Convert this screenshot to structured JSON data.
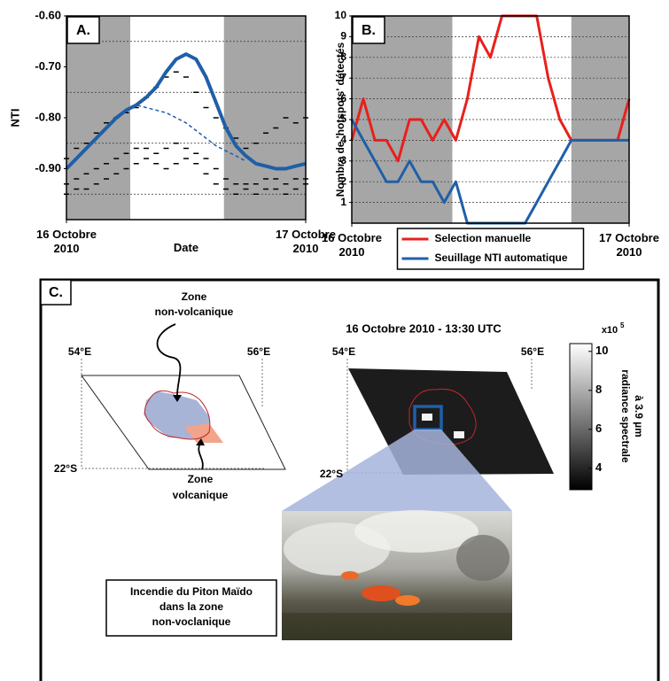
{
  "chart_data": [
    {
      "type": "line",
      "panel_label": "A.",
      "y_label": "NTI",
      "x_label": "Date",
      "x": [
        0,
        1,
        2,
        3,
        4,
        5,
        6,
        7,
        8,
        9,
        10,
        11,
        12,
        13,
        14,
        15,
        16,
        17,
        18,
        19,
        20,
        21,
        22,
        23,
        24
      ],
      "xlim": [
        0,
        24
      ],
      "xticks": [
        {
          "value": 0,
          "label": "16 Octobre 2010"
        },
        {
          "value": 24,
          "label": "17 Octobre 2010"
        }
      ],
      "ylim": [
        -1.0,
        -0.6
      ],
      "yticks": [
        {
          "value": -0.6,
          "label": "-0.60"
        },
        {
          "value": -0.7,
          "label": "-0.70"
        },
        {
          "value": -0.8,
          "label": "-0.80"
        },
        {
          "value": -0.9,
          "label": "-0.90"
        }
      ],
      "minor_grid": [
        -0.65,
        -0.75,
        -0.85,
        -0.95
      ],
      "shaded": [
        [
          0,
          6.4
        ],
        [
          15.8,
          24
        ]
      ],
      "series": [
        {
          "color": "#000000",
          "style": "dashes",
          "values": [
            -0.93,
            -0.92,
            -0.91,
            -0.9,
            -0.89,
            -0.88,
            -0.87,
            -0.86,
            -0.86,
            -0.87,
            -0.86,
            -0.85,
            -0.86,
            -0.87,
            -0.88,
            -0.9,
            -0.92,
            -0.93,
            -0.93,
            -0.93,
            -0.92,
            -0.92,
            -0.93,
            -0.92,
            -0.92
          ]
        },
        {
          "color": "#000000",
          "style": "dashes",
          "values": [
            -0.95,
            -0.94,
            -0.94,
            -0.93,
            -0.92,
            -0.91,
            -0.9,
            -0.89,
            -0.88,
            -0.89,
            -0.9,
            -0.89,
            -0.88,
            -0.89,
            -0.91,
            -0.93,
            -0.94,
            -0.95,
            -0.94,
            -0.95,
            -0.94,
            -0.94,
            -0.95,
            -0.94,
            -0.93
          ]
        },
        {
          "color": "#000000",
          "style": "dashes",
          "values": [
            -0.88,
            -0.86,
            -0.85,
            -0.83,
            -0.81,
            -0.8,
            -0.79,
            -0.78,
            -0.76,
            -0.74,
            -0.72,
            -0.71,
            -0.72,
            -0.75,
            -0.78,
            -0.8,
            -0.82,
            -0.84,
            -0.86,
            -0.85,
            -0.83,
            -0.82,
            -0.8,
            -0.81,
            -0.8
          ]
        },
        {
          "color": "#1f5fa8",
          "style": "dashed",
          "values": [
            null,
            null,
            null,
            null,
            null,
            null,
            -0.785,
            -0.775,
            -0.78,
            -0.785,
            -0.79,
            -0.8,
            -0.81,
            -0.825,
            -0.84,
            -0.855,
            -0.865,
            -0.875,
            -0.885,
            null,
            null,
            null,
            null,
            null,
            null
          ]
        },
        {
          "color": "#1f5fa8",
          "style": "thick",
          "values": [
            -0.9,
            -0.88,
            -0.86,
            -0.84,
            -0.82,
            -0.8,
            -0.785,
            -0.775,
            -0.76,
            -0.74,
            -0.71,
            -0.685,
            -0.675,
            -0.685,
            -0.72,
            -0.77,
            -0.82,
            -0.855,
            -0.875,
            -0.89,
            -0.895,
            -0.9,
            -0.9,
            -0.895,
            -0.89
          ]
        }
      ]
    },
    {
      "type": "line",
      "panel_label": "B.",
      "y_label": "Nombre de 'hotspots' détectés",
      "x": [
        0,
        1,
        2,
        3,
        4,
        5,
        6,
        7,
        8,
        9,
        10,
        11,
        12,
        13,
        14,
        15,
        16,
        17,
        18,
        19,
        20,
        21,
        22,
        23,
        24
      ],
      "xlim": [
        0,
        24
      ],
      "xticks": [
        {
          "value": 0,
          "label": "16 Octobre 2010"
        },
        {
          "value": 24,
          "label": "17 Octobre 2010"
        }
      ],
      "ylim": [
        0,
        10
      ],
      "yticks": [
        1,
        2,
        3,
        4,
        5,
        6,
        7,
        8,
        9,
        10
      ],
      "grid": true,
      "shaded": [
        [
          0,
          8.7
        ],
        [
          19,
          24
        ]
      ],
      "legend": "bottom",
      "series": [
        {
          "name": "Selection manuelle",
          "color": "#e8201c",
          "style": "step",
          "values": [
            4,
            6,
            4,
            4,
            3,
            5,
            5,
            4,
            5,
            4,
            6,
            9,
            8,
            10,
            10,
            10,
            10,
            7,
            5,
            4,
            4,
            4,
            4,
            4,
            6
          ]
        },
        {
          "name": "Seuillage NTI automatique",
          "color": "#1f5fa8",
          "style": "step",
          "values": [
            5,
            4,
            3,
            2,
            2,
            3,
            2,
            2,
            1,
            2,
            0,
            0,
            0,
            0,
            0,
            0,
            1,
            2,
            3,
            4,
            4,
            4,
            4,
            4,
            4
          ]
        }
      ]
    }
  ],
  "panel_c": {
    "label": "C.",
    "title": "16 Octobre 2010 - 13:30 UTC",
    "lon_labels": [
      "54°E",
      "56°E"
    ],
    "lat_label": "22°S",
    "non_volcanic_zone": [
      "Zone",
      "non-volcanique"
    ],
    "volcanic_zone": [
      "Zone",
      "volcanique"
    ],
    "colorbar": {
      "multiplier": "x10",
      "exponent": "5",
      "ticks": [
        4,
        6,
        8,
        10
      ],
      "range": [
        2.9,
        10.4
      ],
      "label": [
        "radiance spectrale",
        "à 3.9 µm"
      ]
    },
    "photo_caption": [
      "Incendie du Piton Maïdo",
      "dans la zone",
      "non-voclanique"
    ]
  }
}
